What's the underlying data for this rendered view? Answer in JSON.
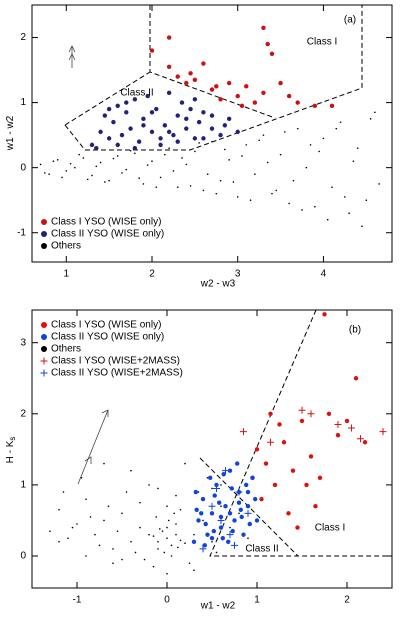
{
  "chart_data": [
    {
      "type": "scatter",
      "panel_label": "(a)",
      "xlabel": "w2 - w3",
      "ylabel": "w1 - w2",
      "annotations": [
        "Class I",
        "Class II"
      ],
      "xlim": [
        0.6,
        4.8
      ],
      "ylim": [
        -1.45,
        2.5
      ],
      "xticks": [
        1,
        2,
        3,
        4
      ],
      "yticks": [
        -1,
        0,
        1,
        2
      ],
      "series": [
        {
          "name": "Others",
          "color": "#000000",
          "marker": "tiny",
          "x": [
            0.7,
            0.8,
            0.9,
            1.0,
            1.1,
            1.2,
            1.3,
            1.4,
            1.5,
            1.6,
            1.7,
            1.8,
            1.9,
            2.0,
            2.1,
            2.2,
            2.3,
            2.4,
            2.5,
            2.6,
            2.7,
            2.8,
            2.9,
            3.0,
            3.1,
            3.2,
            3.3,
            3.4,
            3.5,
            3.6,
            3.7,
            3.8,
            3.9,
            4.0,
            4.1,
            4.2,
            4.3,
            4.4,
            4.5,
            4.6,
            0.75,
            0.85,
            0.95,
            1.05,
            1.15,
            1.25,
            1.35,
            1.45,
            1.55,
            1.65,
            1.75,
            1.85,
            1.95,
            2.05,
            2.15,
            2.25,
            2.35,
            2.45,
            2.55,
            2.65,
            2.75,
            2.85,
            2.95,
            3.05,
            3.15,
            3.25,
            3.35,
            3.45,
            3.55,
            3.65,
            3.75,
            3.85,
            3.95,
            4.05,
            4.15,
            4.25,
            4.35,
            4.45,
            4.55,
            4.65
          ],
          "y": [
            0.05,
            -0.1,
            0.12,
            -0.05,
            0.0,
            0.15,
            -0.12,
            0.08,
            -0.2,
            0.18,
            -0.03,
            0.22,
            -0.25,
            0.1,
            -0.15,
            0.3,
            -0.3,
            0.05,
            0.25,
            -0.35,
            0.4,
            -0.2,
            0.12,
            -0.45,
            0.35,
            -0.1,
            0.5,
            -0.4,
            0.2,
            -0.55,
            0.6,
            0.0,
            -0.6,
            0.45,
            -0.3,
            0.7,
            -0.7,
            0.3,
            -0.5,
            0.85,
            -0.08,
            0.1,
            -0.15,
            0.06,
            0.2,
            -0.18,
            0.02,
            -0.22,
            0.14,
            -0.08,
            0.26,
            -0.16,
            0.04,
            -0.3,
            0.2,
            -0.05,
            0.15,
            -0.28,
            0.38,
            -0.1,
            -0.4,
            0.28,
            -0.22,
            0.18,
            -0.5,
            0.42,
            0.08,
            -0.35,
            0.55,
            -0.2,
            -0.65,
            0.35,
            0.25,
            -0.8,
            0.6,
            -0.45,
            0.1,
            -0.9,
            0.75,
            -0.25
          ]
        },
        {
          "name": "Class I YSO (WISE only)",
          "color": "#cc1111",
          "marker": "dot",
          "x": [
            2.0,
            2.2,
            2.3,
            2.4,
            2.5,
            2.6,
            2.7,
            2.8,
            2.9,
            3.0,
            3.1,
            3.2,
            3.3,
            3.35,
            3.4,
            3.5,
            3.6,
            3.7,
            3.9,
            2.2,
            3.3,
            4.1,
            2.45,
            2.75,
            3.05
          ],
          "y": [
            1.8,
            1.55,
            1.4,
            1.3,
            1.35,
            1.6,
            1.2,
            1.05,
            1.3,
            1.1,
            1.25,
            1.0,
            2.15,
            1.9,
            1.75,
            1.3,
            1.1,
            1.0,
            0.95,
            2.0,
            1.15,
            0.95,
            1.45,
            1.25,
            0.95
          ]
        },
        {
          "name": "Class II YSO (WISE only)",
          "color": "#22227a",
          "marker": "dot",
          "x": [
            1.3,
            1.4,
            1.45,
            1.5,
            1.55,
            1.6,
            1.65,
            1.7,
            1.75,
            1.8,
            1.85,
            1.9,
            1.95,
            2.0,
            2.05,
            2.1,
            2.15,
            2.2,
            2.25,
            2.3,
            2.35,
            2.4,
            2.45,
            2.5,
            2.55,
            2.6,
            2.7,
            2.8,
            2.9,
            3.0,
            1.35,
            1.5,
            1.7,
            1.9,
            2.1,
            2.3,
            2.5,
            2.7,
            1.6,
            1.8,
            2.0,
            2.2,
            2.4,
            2.6,
            2.85
          ],
          "y": [
            0.35,
            0.55,
            0.8,
            0.45,
            0.7,
            0.95,
            0.5,
            0.85,
            0.6,
            1.05,
            0.4,
            0.75,
            1.1,
            0.55,
            0.9,
            0.35,
            0.65,
            1.15,
            0.5,
            0.8,
            1.0,
            0.6,
            0.9,
            0.45,
            0.7,
            0.85,
            0.6,
            0.5,
            0.75,
            0.55,
            0.3,
            0.9,
            1.0,
            0.65,
            0.45,
            0.4,
            1.05,
            0.8,
            0.35,
            0.3,
            0.85,
            0.55,
            0.75,
            0.45,
            0.65
          ]
        }
      ]
    },
    {
      "type": "scatter",
      "panel_label": "(b)",
      "xlabel": "w1 - w2",
      "ylabel": "H - K",
      "ylabel_subscript": "s",
      "annotations": [
        "Class I",
        "Class II"
      ],
      "xlim": [
        -1.5,
        2.5
      ],
      "ylim": [
        -0.45,
        3.46
      ],
      "xticks": [
        -1,
        0,
        1,
        2
      ],
      "yticks": [
        0,
        1,
        2,
        3
      ],
      "series": [
        {
          "name": "Others",
          "color": "#000000",
          "marker": "tiny",
          "x": [
            -0.1,
            0.0,
            0.1,
            -0.05,
            0.05,
            -0.15,
            0.15,
            0.0,
            -0.1,
            0.1,
            -0.2,
            0.2,
            0.02,
            -0.03,
            0.08,
            -0.08,
            0.12,
            -0.12,
            0.0,
            0.05,
            -0.3,
            -0.4,
            -0.5,
            -0.6,
            -0.7,
            -0.8,
            -0.9,
            -1.0,
            -1.1,
            -1.2,
            -1.3,
            -0.35,
            -0.45,
            -0.55,
            -0.65,
            -0.75,
            -0.85,
            -0.95,
            -1.05,
            -1.15,
            0.3,
            0.4,
            0.5,
            0.6,
            0.7,
            0.8,
            0.9,
            0.35,
            0.45,
            0.55,
            0.25,
            -0.25,
            -0.2,
            0.2,
            -0.6,
            -0.9,
            -0.4,
            0.3,
            0.6,
            -1.2,
            0.1,
            -0.1,
            -0.3,
            0.4,
            0.5,
            -0.5,
            -0.7,
            0.15,
            -0.15,
            0.0
          ],
          "y": [
            0.2,
            0.25,
            0.3,
            0.35,
            0.15,
            0.28,
            0.22,
            0.4,
            0.1,
            0.45,
            0.3,
            0.18,
            0.5,
            0.05,
            0.6,
            0.38,
            0.12,
            0.55,
            0.7,
            0.0,
            0.4,
            0.2,
            0.6,
            0.1,
            0.5,
            0.3,
            0.8,
            0.45,
            0.25,
            0.65,
            0.35,
            0.05,
            0.9,
            0.35,
            0.7,
            0.15,
            0.55,
            1.1,
            0.4,
            0.9,
            0.3,
            0.5,
            0.2,
            0.7,
            0.4,
            0.6,
            0.25,
            0.9,
            1.1,
            0.05,
            -0.1,
            -0.05,
            1.0,
            1.3,
            -0.1,
            0.0,
            1.2,
            -0.2,
            1.0,
            0.2,
            0.85,
            0.95,
            0.75,
            0.15,
            0.95,
            -0.05,
            1.3,
            0.65,
            -0.15,
            -0.25
          ]
        },
        {
          "name": "Class I YSO (WISE only)",
          "color": "#dd1111",
          "marker": "dot",
          "x": [
            1.0,
            1.1,
            1.2,
            1.3,
            1.4,
            1.5,
            1.6,
            1.7,
            1.8,
            1.9,
            2.0,
            2.1,
            2.2,
            1.05,
            1.35,
            1.55,
            1.25,
            1.45,
            1.75,
            1.15,
            0.95,
            1.65
          ],
          "y": [
            1.5,
            1.3,
            1.0,
            1.6,
            1.2,
            1.9,
            1.4,
            1.1,
            2.0,
            1.7,
            1.9,
            2.5,
            1.6,
            0.8,
            0.6,
            1.0,
            1.85,
            0.4,
            3.4,
            2.0,
            1.1,
            0.7
          ]
        },
        {
          "name": "Class II YSO (WISE only)",
          "color": "#1144dd",
          "marker": "dot",
          "x": [
            0.3,
            0.35,
            0.4,
            0.45,
            0.5,
            0.55,
            0.6,
            0.65,
            0.7,
            0.75,
            0.8,
            0.85,
            0.9,
            0.95,
            1.0,
            0.32,
            0.42,
            0.52,
            0.62,
            0.72,
            0.82,
            0.92,
            0.38,
            0.48,
            0.58,
            0.68,
            0.78,
            0.88,
            0.98,
            0.33,
            0.43,
            0.53,
            0.63,
            0.73,
            0.83,
            0.6,
            0.7,
            0.8,
            0.5,
            0.9
          ],
          "y": [
            0.2,
            0.5,
            0.8,
            0.3,
            0.6,
            1.0,
            0.4,
            0.7,
            1.2,
            0.5,
            0.9,
            0.3,
            0.7,
            1.1,
            0.5,
            0.9,
            0.15,
            0.35,
            0.25,
            0.95,
            0.65,
            0.45,
            0.6,
            1.1,
            0.75,
            0.2,
            1.3,
            1.0,
            0.8,
            0.65,
            0.45,
            0.85,
            1.15,
            0.35,
            0.55,
            0.55,
            0.6,
            0.75,
            0.25,
            0.9
          ]
        },
        {
          "name": "Others",
          "color": "#000000",
          "marker": "legend-only",
          "x": [],
          "y": []
        },
        {
          "name": "Class I YSO (WISE+2MASS)",
          "color": "#dd1111",
          "marker": "plus",
          "x": [
            1.5,
            1.6,
            1.9,
            2.05,
            2.4,
            0.85,
            1.15,
            2.15
          ],
          "y": [
            2.05,
            2.0,
            1.85,
            1.8,
            1.75,
            1.75,
            1.6,
            1.65
          ]
        },
        {
          "name": "Class II YSO (WISE+2MASS)",
          "color": "#1144dd",
          "marker": "plus",
          "x": [
            0.4,
            0.6,
            0.7,
            0.8,
            0.65,
            0.5,
            0.75,
            0.9,
            0.55
          ],
          "y": [
            0.1,
            0.5,
            0.3,
            0.9,
            1.2,
            0.7,
            0.15,
            0.6,
            0.95
          ]
        }
      ]
    }
  ]
}
